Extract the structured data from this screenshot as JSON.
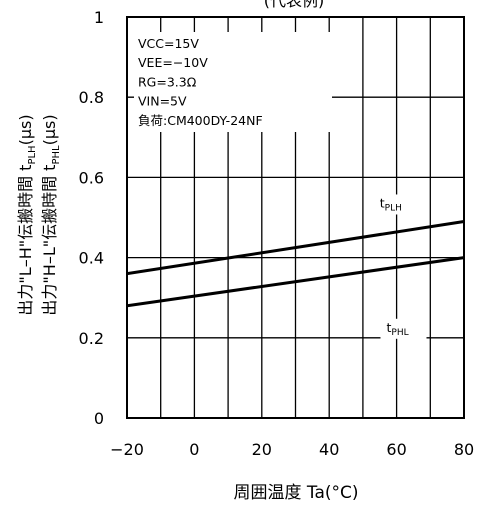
{
  "chart_data": {
    "type": "line",
    "title": "(代表例)",
    "xlabel": "周囲温度 Ta(°C)",
    "ylabel_lines": [
      {
        "prefix": "出力\"L–H\"伝搬時間 t",
        "sub": "PLH",
        "suffix": "(μs)"
      },
      {
        "prefix": "出力\"H–L\"伝搬時間 t",
        "sub": "PHL",
        "suffix": "(μs)"
      }
    ],
    "xlim": [
      -20,
      80
    ],
    "ylim": [
      0,
      1
    ],
    "x_ticks": [
      "−20",
      "0",
      "20",
      "40",
      "60",
      "80"
    ],
    "y_ticks": [
      "0",
      "0.2",
      "0.4",
      "0.6",
      "0.8",
      "1"
    ],
    "grid": true,
    "conditions": [
      "VCC=15V",
      "VEE=−10V",
      "RG=3.3Ω",
      "VIN=5V",
      "負荷:CM400DY-24NF"
    ],
    "series": [
      {
        "name_main": "t",
        "name_sub": "PLH",
        "x": [
          -20,
          80
        ],
        "values": [
          0.36,
          0.49
        ]
      },
      {
        "name_main": "t",
        "name_sub": "PHL",
        "x": [
          -20,
          80
        ],
        "values": [
          0.28,
          0.4
        ]
      }
    ],
    "series_labels_at": [
      {
        "x": 55,
        "y": 0.525
      },
      {
        "x": 57,
        "y": 0.215
      }
    ],
    "line_color": "#000000"
  }
}
